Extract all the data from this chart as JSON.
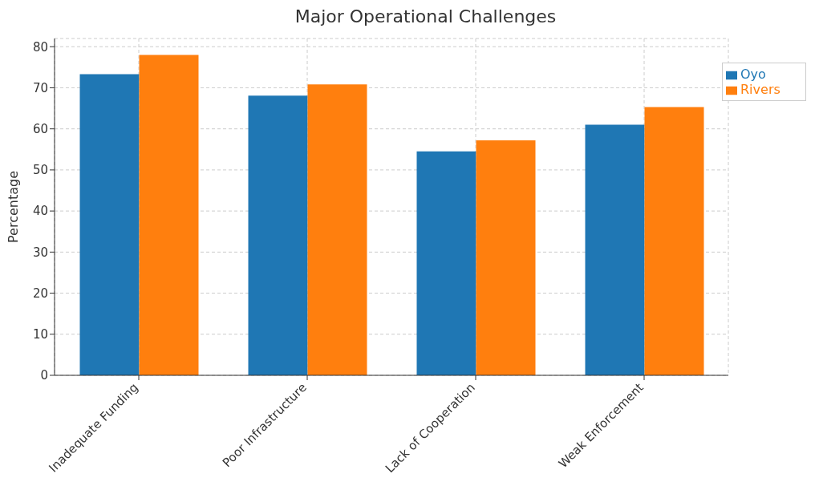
{
  "chart_data": {
    "type": "bar",
    "title": "Major Operational Challenges",
    "ylabel": "Percentage",
    "categories": [
      "Inadequate Funding",
      "Poor Infrastructure",
      "Lack of Cooperation",
      "Weak Enforcement"
    ],
    "series": [
      {
        "name": "Oyo",
        "color": "#1f77b4",
        "values": [
          73.3,
          68.1,
          54.5,
          61
        ]
      },
      {
        "name": "Rivers",
        "color": "#ff7f0e",
        "values": [
          78,
          70.8,
          57.2,
          65.3
        ]
      }
    ],
    "ylim": [
      0,
      82
    ],
    "yticks": [
      0,
      10,
      20,
      30,
      40,
      50,
      60,
      70,
      80
    ],
    "grid": true,
    "legend": "top right"
  }
}
